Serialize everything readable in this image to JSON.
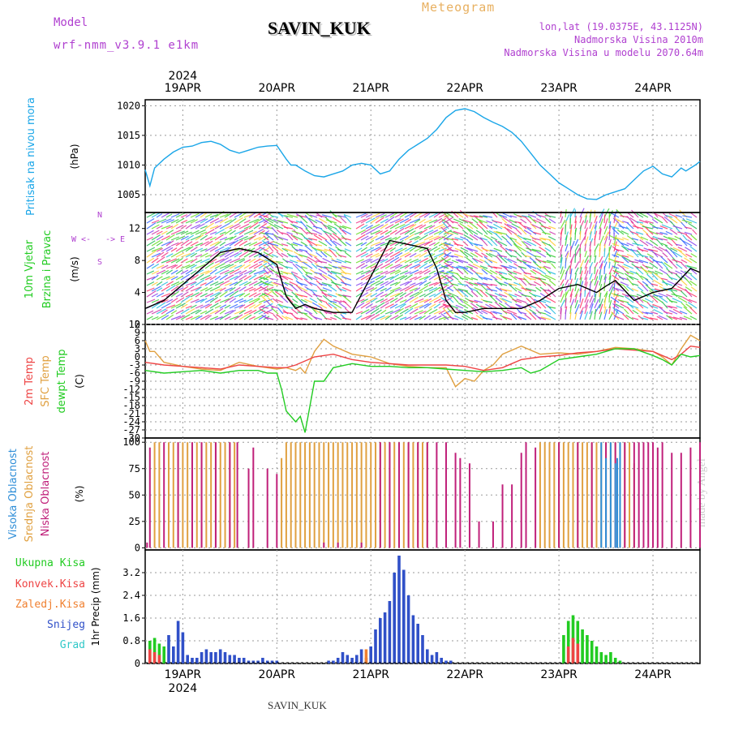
{
  "header": {
    "station": "SAVIN_KUK",
    "model_label": "Model",
    "model_value": "wrf-nmm_v3.9.1 e1km",
    "meteogram_label": "Meteogram",
    "lonlat": "lon,lat (19.0375E, 43.1125N)",
    "altitude": "Nadmorska Visina 2010m",
    "model_altitude": "Nadmorska Visina u modelu 2070.64m",
    "year": "2024",
    "footer": "SAVIN_KUK",
    "credit": "made by Angel"
  },
  "colors": {
    "pressure": "#1aa6e8",
    "temp2m": "#ee4444",
    "sfc_temp": "#e0a040",
    "dewpoint": "#22cc22",
    "high_cloud": "#2f8ed8",
    "mid_cloud": "#e0a040",
    "low_cloud": "#c0207a",
    "total_precip": "#22cc22",
    "conv_precip": "#ee4444",
    "frz_precip": "#f08030",
    "snow": "#3050c8",
    "hail": "#30c8c8"
  },
  "wind_legend": {
    "n": "N",
    "s": "S",
    "e": "E",
    "w": "W"
  },
  "chart_data": [
    {
      "type": "line",
      "panel": "pressure",
      "title": "Pritisak na nivou mora",
      "ylabel": "(hPa)",
      "ylim": [
        1002,
        1021
      ],
      "yticks": [
        1005,
        1010,
        1015,
        1020
      ],
      "x_dates": [
        "19APR",
        "20APR",
        "21APR",
        "22APR",
        "23APR",
        "24APR"
      ],
      "x_day_range": [
        18.6,
        24.5
      ],
      "grid": true,
      "series": [
        {
          "name": "Pritisak na nivou mora",
          "x": [
            18.6,
            18.65,
            18.7,
            18.8,
            18.9,
            19.0,
            19.1,
            19.2,
            19.3,
            19.4,
            19.5,
            19.6,
            19.7,
            19.8,
            19.9,
            20.0,
            20.1,
            20.15,
            20.2,
            20.3,
            20.4,
            20.5,
            20.6,
            20.7,
            20.8,
            20.9,
            21.0,
            21.1,
            21.2,
            21.3,
            21.4,
            21.5,
            21.6,
            21.7,
            21.8,
            21.9,
            22.0,
            22.1,
            22.2,
            22.3,
            22.4,
            22.5,
            22.6,
            22.7,
            22.8,
            22.9,
            23.0,
            23.1,
            23.2,
            23.3,
            23.4,
            23.5,
            23.6,
            23.7,
            23.8,
            23.9,
            24.0,
            24.1,
            24.2,
            24.3,
            24.35,
            24.4,
            24.45,
            24.5
          ],
          "y": [
            1009.2,
            1006.5,
            1009.5,
            1011,
            1012.2,
            1013,
            1013.2,
            1013.8,
            1014,
            1013.5,
            1012.5,
            1012,
            1012.5,
            1013,
            1013.2,
            1013.3,
            1011,
            1010,
            1010,
            1009,
            1008.2,
            1008,
            1008.5,
            1009,
            1010,
            1010.3,
            1010,
            1008.5,
            1009,
            1011,
            1012.5,
            1013.5,
            1014.5,
            1016,
            1018,
            1019.2,
            1019.5,
            1019,
            1018,
            1017.2,
            1016.5,
            1015.5,
            1014,
            1012,
            1010,
            1008.5,
            1007,
            1006,
            1005,
            1004.3,
            1004.2,
            1005,
            1005.5,
            1006,
            1007.5,
            1009,
            1009.8,
            1008.5,
            1008,
            1009.5,
            1009,
            1009.5,
            1010,
            1010.6
          ]
        }
      ]
    },
    {
      "type": "line",
      "panel": "wind",
      "title": "10m Vjetar Brzina i Pravac",
      "ylabel": "(m/s)",
      "ylim": [
        0,
        14
      ],
      "yticks": [
        0,
        4,
        8,
        12
      ],
      "grid": true,
      "series": [
        {
          "name": "Brzina",
          "x": [
            18.6,
            18.8,
            19.0,
            19.2,
            19.4,
            19.6,
            19.8,
            20.0,
            20.1,
            20.2,
            20.3,
            20.4,
            20.6,
            20.8,
            21.0,
            21.2,
            21.4,
            21.6,
            21.7,
            21.8,
            21.9,
            22.0,
            22.2,
            22.4,
            22.6,
            22.8,
            23.0,
            23.2,
            23.3,
            23.4,
            23.5,
            23.6,
            23.8,
            24.0,
            24.2,
            24.4,
            24.5
          ],
          "y": [
            2,
            3,
            5,
            7,
            9,
            9.5,
            9,
            7.5,
            3.5,
            2,
            2.5,
            2,
            1.5,
            1.5,
            6,
            10.5,
            10,
            9.5,
            7,
            3,
            1.5,
            1.5,
            2,
            2,
            2,
            3,
            4.5,
            5,
            4.5,
            4,
            4.8,
            5.5,
            3,
            4,
            4.5,
            7,
            6.5
          ]
        }
      ]
    },
    {
      "type": "line",
      "panel": "temperature",
      "title": "2m Temp SFC Temp dewpt Temp",
      "ylabel": "(C)",
      "ylim": [
        -30,
        12
      ],
      "yticks": [
        12,
        9,
        6,
        3,
        0,
        -3,
        -6,
        -9,
        -12,
        -15,
        -18,
        -21,
        -24,
        -27,
        -30
      ],
      "grid": true,
      "series": [
        {
          "name": "2m Temp",
          "x": [
            18.6,
            18.8,
            19.0,
            19.2,
            19.4,
            19.6,
            19.8,
            20.0,
            20.1,
            20.2,
            20.4,
            20.6,
            20.8,
            21.0,
            21.2,
            21.4,
            21.6,
            21.8,
            22.0,
            22.2,
            22.4,
            22.6,
            22.8,
            23.0,
            23.2,
            23.4,
            23.6,
            23.8,
            24.0,
            24.2,
            24.3,
            24.4,
            24.5
          ],
          "y": [
            -2,
            -3,
            -3.5,
            -4,
            -4.5,
            -3,
            -3.5,
            -4,
            -4,
            -3,
            0,
            1,
            -1,
            -2,
            -2.5,
            -3,
            -3,
            -3,
            -3.5,
            -5,
            -4,
            -1,
            0,
            0.5,
            1.5,
            2,
            3,
            2.5,
            2,
            -1,
            1,
            4,
            3.5
          ]
        },
        {
          "name": "SFC Temp",
          "x": [
            18.6,
            18.65,
            18.7,
            18.8,
            19.0,
            19.2,
            19.4,
            19.6,
            19.8,
            20.0,
            20.1,
            20.2,
            20.25,
            20.3,
            20.4,
            20.5,
            20.6,
            20.8,
            21.0,
            21.2,
            21.4,
            21.6,
            21.8,
            21.9,
            22.0,
            22.1,
            22.2,
            22.3,
            22.4,
            22.6,
            22.8,
            23.0,
            23.2,
            23.4,
            23.6,
            23.8,
            24.0,
            24.1,
            24.2,
            24.3,
            24.4,
            24.5
          ],
          "y": [
            6,
            2,
            2,
            -2,
            -3.5,
            -4.5,
            -5,
            -2,
            -3.5,
            -4.5,
            -4,
            -5,
            -4,
            -6,
            2,
            6.5,
            4,
            1,
            0,
            -2.5,
            -3.5,
            -4,
            -4,
            -11,
            -8,
            -9,
            -5,
            -3,
            1,
            4,
            1,
            1.5,
            1,
            2,
            3.5,
            3,
            2,
            0,
            -3,
            3,
            8,
            6
          ]
        },
        {
          "name": "dewpt Temp",
          "x": [
            18.6,
            18.8,
            19.0,
            19.2,
            19.4,
            19.6,
            19.8,
            19.9,
            20.0,
            20.05,
            20.1,
            20.2,
            20.25,
            20.3,
            20.4,
            20.5,
            20.6,
            20.8,
            21.0,
            21.2,
            21.4,
            21.6,
            21.8,
            22.0,
            22.2,
            22.4,
            22.6,
            22.7,
            22.8,
            23.0,
            23.2,
            23.4,
            23.6,
            23.8,
            24.0,
            24.1,
            24.2,
            24.3,
            24.4,
            24.5
          ],
          "y": [
            -5,
            -6,
            -5.5,
            -5,
            -6,
            -5,
            -5,
            -6,
            -6,
            -12,
            -20,
            -24,
            -22,
            -28,
            -9,
            -9,
            -4,
            -2.5,
            -3.5,
            -3.5,
            -4,
            -4,
            -4.5,
            -5,
            -5.5,
            -5,
            -4,
            -6,
            -5,
            -1,
            0,
            1,
            3,
            3,
            0.5,
            -1,
            -3,
            1,
            0,
            0.5
          ]
        }
      ]
    },
    {
      "type": "bar",
      "panel": "clouds",
      "title": "Visoka Oblacnost Srednja Oblacnost Niska Oblacnost",
      "ylabel": "(%)",
      "ylim": [
        0,
        100
      ],
      "yticks": [
        0,
        25,
        50,
        75,
        100
      ],
      "grid": true,
      "series": [
        {
          "name": "Visoka Oblacnost",
          "x": [
            23.45,
            23.5,
            23.55,
            23.6,
            23.62,
            23.65,
            24.75
          ],
          "values": [
            100,
            85,
            100,
            80,
            85,
            100,
            0
          ]
        },
        {
          "name": "Srednja Oblacnost",
          "x": [
            18.7,
            18.75,
            18.85,
            18.9,
            18.95,
            19.0,
            19.05,
            19.1,
            19.15,
            19.2,
            19.25,
            19.3,
            19.35,
            19.4,
            19.45,
            19.5,
            19.55,
            20.05,
            20.1,
            20.15,
            20.2,
            20.25,
            20.3,
            20.35,
            20.4,
            20.45,
            20.5,
            20.55,
            20.6,
            20.65,
            20.7,
            20.75,
            20.8,
            20.85,
            20.9,
            20.95,
            21.0,
            21.05,
            21.1,
            21.15,
            21.2,
            21.25,
            21.3,
            21.35,
            21.4,
            21.45,
            21.5,
            21.55,
            21.6,
            22.8,
            22.85,
            22.9,
            22.95,
            23.0,
            23.05,
            23.1,
            23.15,
            23.2,
            23.25,
            23.3,
            23.35,
            23.4,
            23.45,
            23.5,
            23.55,
            23.6,
            23.65,
            23.7,
            23.75,
            23.8
          ],
          "values": [
            100,
            100,
            100,
            100,
            100,
            100,
            100,
            100,
            100,
            100,
            100,
            100,
            100,
            100,
            100,
            100,
            100,
            85,
            100,
            100,
            100,
            100,
            100,
            100,
            100,
            100,
            100,
            100,
            100,
            100,
            100,
            100,
            100,
            100,
            100,
            100,
            100,
            100,
            100,
            100,
            100,
            100,
            100,
            100,
            100,
            100,
            100,
            100,
            100,
            100,
            100,
            100,
            100,
            100,
            100,
            100,
            100,
            100,
            100,
            100,
            100,
            100,
            100,
            100,
            100,
            100,
            100,
            100,
            100,
            80
          ]
        },
        {
          "name": "Niska Oblacnost",
          "x": [
            18.62,
            18.65,
            18.8,
            18.95,
            19.1,
            19.2,
            19.35,
            19.5,
            19.58,
            19.7,
            19.75,
            19.9,
            20.0,
            20.5,
            20.65,
            20.9,
            21.1,
            21.2,
            21.3,
            21.4,
            21.5,
            21.6,
            21.7,
            21.8,
            21.9,
            21.95,
            22.05,
            22.15,
            22.3,
            22.4,
            22.5,
            22.6,
            22.65,
            22.75,
            23.0,
            23.2,
            23.35,
            23.5,
            23.6,
            23.7,
            23.8,
            23.85,
            23.9,
            23.95,
            24.0,
            24.05,
            24.1,
            24.2,
            24.3,
            24.4,
            24.5
          ],
          "values": [
            5,
            95,
            100,
            100,
            100,
            100,
            100,
            100,
            100,
            75,
            95,
            75,
            70,
            5,
            5,
            5,
            100,
            100,
            100,
            100,
            100,
            100,
            100,
            100,
            90,
            85,
            80,
            25,
            25,
            60,
            60,
            90,
            100,
            95,
            100,
            100,
            100,
            100,
            100,
            100,
            100,
            100,
            100,
            100,
            100,
            95,
            100,
            90,
            90,
            95,
            100
          ]
        }
      ]
    },
    {
      "type": "bar",
      "panel": "precipitation",
      "title": "Ukupna Kisa Konvek.Kisa Zaledj.Kisa Snijeg Grad",
      "ylabel": "1hr Precip (mm)",
      "ylim": [
        0,
        4.0
      ],
      "yticks": [
        0,
        0.8,
        1.6,
        2.4,
        3.2
      ],
      "grid": true,
      "series": [
        {
          "name": "Ukupna Kisa",
          "x": [
            18.65,
            18.7,
            18.75,
            18.8,
            23.05,
            23.1,
            23.15,
            23.2,
            23.25,
            23.3,
            23.35,
            23.4,
            23.45,
            23.5,
            23.55,
            23.6,
            23.65
          ],
          "values": [
            0.8,
            0.9,
            0.7,
            0.6,
            1.0,
            1.5,
            1.7,
            1.5,
            1.2,
            1.0,
            0.8,
            0.6,
            0.4,
            0.3,
            0.4,
            0.2,
            0.1
          ]
        },
        {
          "name": "Konvek.Kisa",
          "x": [
            18.65,
            18.7,
            18.75,
            23.1,
            23.15,
            23.2
          ],
          "values": [
            0.5,
            0.4,
            0.3,
            0.6,
            0.9,
            0.7
          ]
        },
        {
          "name": "Zaledj.Kisa",
          "x": [
            20.95
          ],
          "values": [
            0.5
          ]
        },
        {
          "name": "Snijeg",
          "x": [
            18.85,
            18.9,
            18.95,
            19.0,
            19.05,
            19.1,
            19.15,
            19.2,
            19.25,
            19.3,
            19.35,
            19.4,
            19.45,
            19.5,
            19.55,
            19.6,
            19.65,
            19.7,
            19.75,
            19.8,
            19.85,
            19.9,
            19.95,
            20.0,
            20.55,
            20.6,
            20.65,
            20.7,
            20.75,
            20.8,
            20.85,
            20.9,
            20.95,
            21.0,
            21.05,
            21.1,
            21.15,
            21.2,
            21.25,
            21.3,
            21.35,
            21.4,
            21.45,
            21.5,
            21.55,
            21.6,
            21.65,
            21.7,
            21.75,
            21.8,
            21.85
          ],
          "values": [
            1.0,
            0.6,
            1.5,
            1.1,
            0.3,
            0.2,
            0.2,
            0.4,
            0.5,
            0.4,
            0.4,
            0.5,
            0.4,
            0.3,
            0.3,
            0.2,
            0.2,
            0.1,
            0.1,
            0.1,
            0.2,
            0.1,
            0.1,
            0.1,
            0.1,
            0.1,
            0.2,
            0.4,
            0.3,
            0.2,
            0.3,
            0.5,
            0.2,
            0.6,
            1.2,
            1.6,
            1.8,
            2.2,
            3.2,
            3.8,
            3.3,
            2.4,
            1.7,
            1.4,
            1.0,
            0.5,
            0.3,
            0.4,
            0.2,
            0.1,
            0.1
          ]
        },
        {
          "name": "Grad",
          "x": [
            21.1
          ],
          "values": [
            0.0
          ]
        }
      ]
    }
  ]
}
